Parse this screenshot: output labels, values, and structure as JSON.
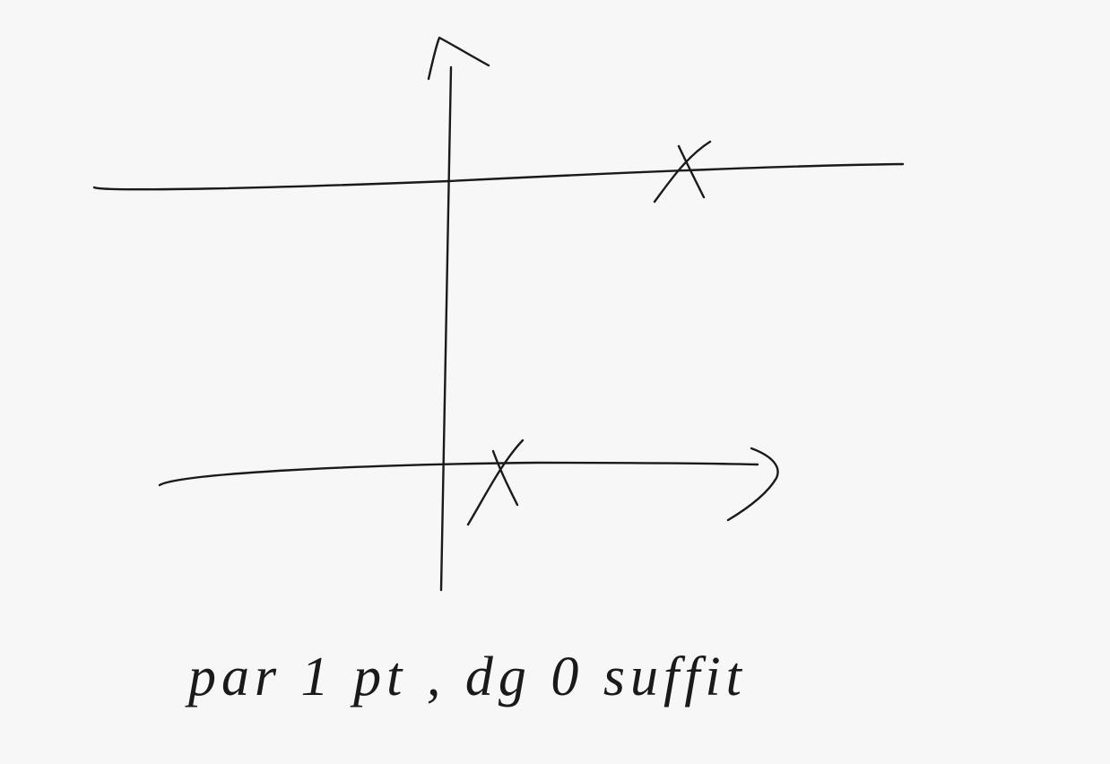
{
  "caption": "par 1 pt , dg 0 suffit"
}
